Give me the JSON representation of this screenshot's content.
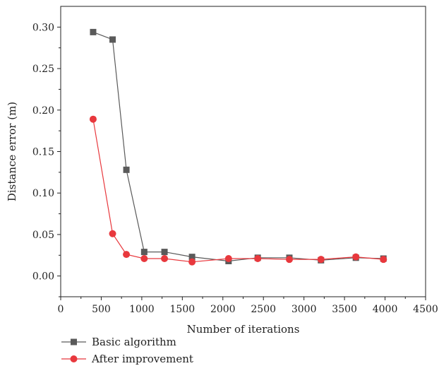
{
  "chart_data": {
    "type": "line",
    "title": "",
    "xlabel": "Number of iterations",
    "ylabel": "Distance error (m)",
    "xlim": [
      0,
      4500
    ],
    "ylim": [
      -0.025,
      0.325
    ],
    "xticks": [
      0,
      500,
      1000,
      1500,
      2000,
      2500,
      3000,
      3500,
      4000,
      4500
    ],
    "yticks": [
      0.0,
      0.05,
      0.1,
      0.15,
      0.2,
      0.25,
      0.3
    ],
    "ytick_labels": [
      "0.00",
      "0.05",
      "0.10",
      "0.15",
      "0.20",
      "0.25",
      "0.30"
    ],
    "grid": false,
    "legend_position": "bottom-left",
    "series": [
      {
        "name": "Basic algorithm",
        "color": "#5a5a5a",
        "marker": "square",
        "x": [
          400,
          640,
          810,
          1030,
          1280,
          1620,
          2070,
          2430,
          2820,
          3210,
          3640,
          3980
        ],
        "y": [
          0.294,
          0.285,
          0.128,
          0.029,
          0.029,
          0.023,
          0.018,
          0.022,
          0.022,
          0.019,
          0.022,
          0.021
        ]
      },
      {
        "name": "After improvement",
        "color": "#e8383d",
        "marker": "circle",
        "x": [
          400,
          640,
          810,
          1030,
          1280,
          1620,
          2070,
          2430,
          2820,
          3210,
          3640,
          3980
        ],
        "y": [
          0.189,
          0.051,
          0.026,
          0.021,
          0.021,
          0.017,
          0.021,
          0.021,
          0.02,
          0.02,
          0.023,
          0.02
        ]
      }
    ]
  }
}
